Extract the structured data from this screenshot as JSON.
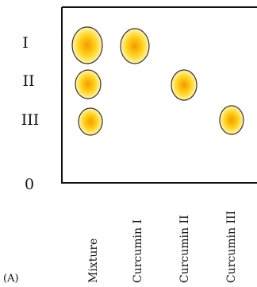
{
  "panel_label": "(A)",
  "y_labels": [
    "I",
    "II",
    "III",
    "0"
  ],
  "lanes": [
    {
      "name": "Mixture",
      "spots": [
        "I",
        "II",
        "III"
      ]
    },
    {
      "name": "Curcumin I",
      "spots": [
        "I"
      ]
    },
    {
      "name": "Curcumin II",
      "spots": [
        "II"
      ]
    },
    {
      "name": "Curcumin III",
      "spots": [
        "III"
      ]
    }
  ],
  "colors": {
    "frame": "#111111",
    "spot_core": "#f59a00",
    "spot_mid": "#ffd21a",
    "spot_edge": "#fff6b0",
    "spot_outline": "#333333"
  }
}
